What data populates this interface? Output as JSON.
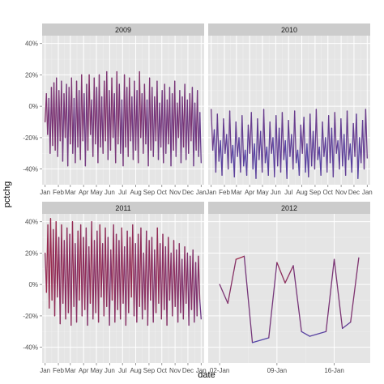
{
  "chart_data": {
    "type": "line",
    "xlabel": "date",
    "ylabel": "pctchg",
    "ylim": [
      -50,
      45
    ],
    "y_ticks": [
      "-40%",
      "-20%",
      "0%",
      "20%",
      "40%"
    ],
    "y_tick_values": [
      -40,
      -20,
      0,
      20,
      40
    ],
    "grid": true,
    "color_low": "#3f4cc2",
    "color_high": "#c11a1a",
    "colors": {
      "panel_bg": "#e5e5e5",
      "strip_bg": "#cccccc",
      "grid_major": "#ffffff",
      "grid_minor": "#f0f0f0"
    },
    "facets": [
      {
        "label": "2009",
        "x_ticks": [
          "Jan",
          "Feb",
          "Mar",
          "Apr",
          "May",
          "Jun",
          "Jul",
          "Aug",
          "Sep",
          "Oct",
          "Nov",
          "Dec",
          "Jan"
        ],
        "x_tick_values": [
          0,
          31,
          59,
          90,
          120,
          151,
          181,
          212,
          243,
          273,
          304,
          334,
          365
        ],
        "xlim": [
          -7,
          372
        ],
        "values": [
          -10,
          8,
          -18,
          5,
          -30,
          12,
          -25,
          15,
          -28,
          18,
          -32,
          10,
          -22,
          16,
          -35,
          8,
          -20,
          14,
          -38,
          12,
          -24,
          18,
          -30,
          5,
          -36,
          16,
          -26,
          10,
          -34,
          20,
          -22,
          8,
          -38,
          14,
          -28,
          20,
          -18,
          4,
          -32,
          18,
          -24,
          12,
          -36,
          20,
          -26,
          6,
          -30,
          16,
          -22,
          22,
          -34,
          10,
          -28,
          18,
          -20,
          8,
          -36,
          22,
          -24,
          14,
          -30,
          4,
          -38,
          20,
          -26,
          12,
          -32,
          18,
          -22,
          6,
          -34,
          16,
          -28,
          10,
          -36,
          22,
          -20,
          8,
          -30,
          14,
          -24,
          4,
          -38,
          18,
          -28,
          12,
          -32,
          6,
          -22,
          16,
          -34,
          2,
          -26,
          10,
          -36,
          14,
          -30,
          4,
          -24,
          12,
          -38,
          8,
          -28,
          16,
          -32,
          2,
          -20,
          10,
          -36,
          6,
          -26,
          14,
          -34,
          4,
          -30,
          8,
          -22,
          12,
          -38,
          2,
          -28,
          10,
          -32,
          -4,
          -36
        ]
      },
      {
        "label": "2010",
        "x_ticks": [
          "Jan",
          "Feb",
          "Mar",
          "Apr",
          "May",
          "Jun",
          "Jul",
          "Aug",
          "Sep",
          "Oct",
          "Nov",
          "Dec",
          "Jan"
        ],
        "x_tick_values": [
          0,
          31,
          59,
          90,
          120,
          151,
          181,
          212,
          243,
          273,
          304,
          334,
          365
        ],
        "xlim": [
          -7,
          372
        ],
        "values": [
          -2,
          -28,
          -15,
          -42,
          -5,
          -35,
          -22,
          -44,
          -8,
          -30,
          -18,
          -40,
          -3,
          -36,
          -25,
          -45,
          -10,
          -32,
          -20,
          -42,
          -6,
          -38,
          -28,
          -44,
          -12,
          -30,
          -4,
          -40,
          -24,
          -46,
          -8,
          -34,
          -16,
          -42,
          -2,
          -36,
          -26,
          -44,
          -10,
          -30,
          -20,
          -45,
          -6,
          -38,
          -14,
          -42,
          -4,
          -34,
          -22,
          -46,
          -9,
          -32,
          -18,
          -40,
          -3,
          -36,
          -28,
          -44,
          -12,
          -30,
          -7,
          -42,
          -24,
          -45,
          -5,
          -38,
          -16,
          -40,
          -2,
          -34,
          -26,
          -44,
          -10,
          -32,
          -20,
          -42,
          -6,
          -36,
          -14,
          -45,
          -4,
          -30,
          -22,
          -40,
          -8,
          -38,
          -18,
          -44,
          -3,
          -34,
          -24,
          -42,
          -11,
          -32,
          -5,
          -46,
          -20,
          -36,
          -9,
          -40,
          -2,
          -33
        ]
      },
      {
        "label": "2011",
        "x_ticks": [
          "Jan",
          "Feb",
          "Mar",
          "Apr",
          "May",
          "Jun",
          "Jul",
          "Aug",
          "Sep",
          "Oct",
          "Nov",
          "Dec",
          "Jan"
        ],
        "x_tick_values": [
          0,
          31,
          59,
          90,
          120,
          151,
          181,
          212,
          243,
          273,
          304,
          334,
          365
        ],
        "xlim": [
          -7,
          372
        ],
        "values": [
          20,
          -5,
          38,
          -15,
          42,
          -10,
          35,
          -20,
          40,
          -8,
          30,
          -25,
          38,
          -12,
          28,
          -22,
          36,
          -18,
          32,
          -26,
          40,
          -14,
          26,
          -24,
          34,
          -10,
          38,
          -20,
          30,
          -16,
          36,
          -26,
          24,
          -12,
          40,
          -22,
          28,
          -18,
          34,
          -24,
          38,
          -8,
          26,
          -20,
          36,
          -14,
          30,
          -26,
          22,
          -10,
          38,
          -24,
          32,
          -16,
          28,
          -22,
          36,
          -12,
          24,
          -26,
          34,
          -18,
          30,
          -8,
          38,
          -20,
          26,
          -24,
          32,
          -14,
          36,
          -22,
          20,
          -16,
          34,
          -26,
          28,
          -10,
          30,
          -24,
          22,
          -18,
          36,
          -12,
          26,
          -22,
          32,
          -16,
          24,
          -26,
          30,
          -10,
          20,
          -20,
          28,
          -14,
          22,
          -24,
          26,
          -18,
          16,
          -22,
          24,
          -12,
          20,
          -26,
          18,
          -16,
          22,
          -24,
          14,
          -20,
          18,
          -10,
          -22
        ]
      },
      {
        "label": "2012",
        "x_ticks": [
          "02-Jan",
          "09-Jan",
          "16-Jan"
        ],
        "x_tick_values": [
          2,
          9,
          16
        ],
        "xlim": [
          0.6,
          20.4
        ],
        "x": [
          2,
          3,
          4,
          5,
          6,
          8,
          9,
          10,
          11,
          12,
          13,
          15,
          16,
          17,
          18,
          19
        ],
        "values": [
          0,
          -12,
          16,
          18,
          -37,
          -34,
          14,
          1,
          12,
          -30,
          -33,
          -30,
          16,
          -28,
          -24,
          17
        ]
      }
    ]
  }
}
